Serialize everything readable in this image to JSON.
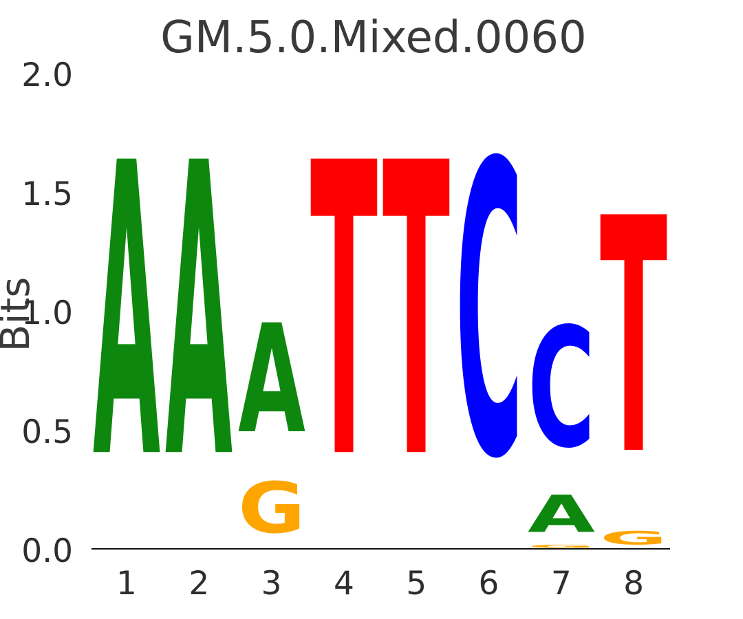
{
  "title": "GM.5.0.Mixed.0060",
  "y_axis": {
    "label": "Bits",
    "ticks": [
      "0.0",
      "0.5",
      "1.0",
      "1.5",
      "2.0"
    ]
  },
  "x_axis": {
    "ticks": [
      "1",
      "2",
      "3",
      "4",
      "5",
      "6",
      "7",
      "8"
    ]
  },
  "colors": {
    "A": "#0e870e",
    "C": "#0000ff",
    "G": "#ffa500",
    "T": "#ff0000",
    "text": "#3a3a3a",
    "axis": "#111111"
  },
  "chart_data": {
    "type": "sequence_logo",
    "title": "GM.5.0.Mixed.0060",
    "ylabel": "Bits",
    "unit": "bits",
    "ylim": [
      0,
      2
    ],
    "grid": false,
    "positions": [
      {
        "position": 1,
        "stack": [
          {
            "base": "A",
            "from": 0,
            "to": 1.98
          }
        ]
      },
      {
        "position": 2,
        "stack": [
          {
            "base": "A",
            "from": 0,
            "to": 1.98
          }
        ]
      },
      {
        "position": 3,
        "stack": [
          {
            "base": "G",
            "from": 0,
            "to": 0.345
          },
          {
            "base": "A",
            "from": 0.345,
            "to": 1.08
          }
        ]
      },
      {
        "position": 4,
        "stack": [
          {
            "base": "T",
            "from": 0,
            "to": 1.98
          }
        ]
      },
      {
        "position": 5,
        "stack": [
          {
            "base": "T",
            "from": 0,
            "to": 1.98
          }
        ]
      },
      {
        "position": 6,
        "stack": [
          {
            "base": "C",
            "from": 0,
            "to": 1.98
          }
        ]
      },
      {
        "position": 7,
        "stack": [
          {
            "base": "G",
            "from": 0,
            "to": 0.02
          },
          {
            "base": "A",
            "from": 0.02,
            "to": 0.27
          },
          {
            "base": "C",
            "from": 0.27,
            "to": 1.08
          }
        ]
      },
      {
        "position": 8,
        "stack": [
          {
            "base": "G",
            "from": 0,
            "to": 0.09
          },
          {
            "base": "T",
            "from": 0.09,
            "to": 1.68
          }
        ]
      }
    ]
  }
}
